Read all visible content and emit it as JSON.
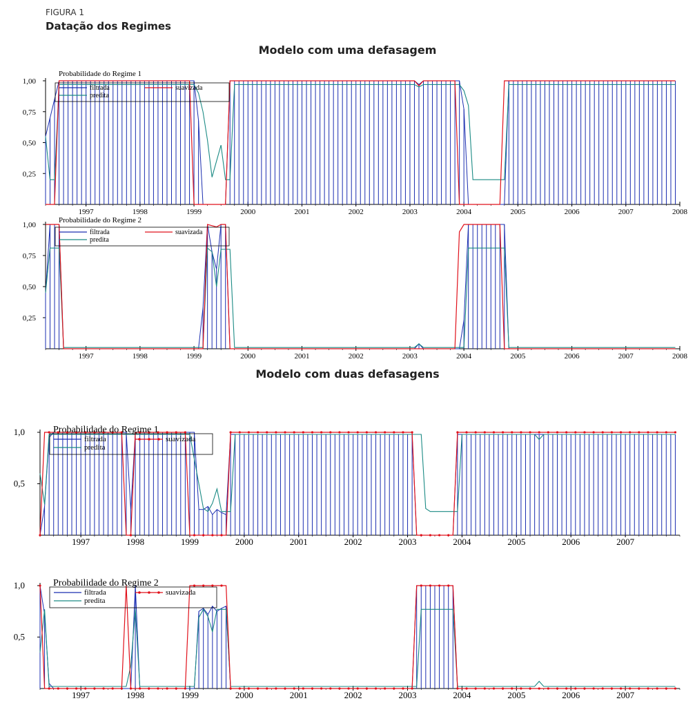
{
  "figure": {
    "label": "FIGURA 1",
    "title": "Datação dos Regimes"
  },
  "sections": [
    {
      "title": "Modelo com uma defasagem"
    },
    {
      "title": "Modelo com duas defasagens"
    }
  ],
  "colors": {
    "filtrada": "#1a2db0",
    "suavizada": "#e0101a",
    "predita": "#1a8a84",
    "axis": "#000000"
  },
  "chart_data": [
    {
      "type": "line",
      "title": "Probabilidade do Regime 1",
      "x_start": 1996.25,
      "x_end": 2007.917,
      "n": 141,
      "xlim": [
        1996.25,
        2008.0
      ],
      "x_tick_labels": [
        "1997",
        "1998",
        "1999",
        "2000",
        "2001",
        "2002",
        "2003",
        "2004",
        "2005",
        "2006",
        "2007",
        "2008"
      ],
      "y_ticks": [
        0.25,
        0.5,
        0.75,
        1.0
      ],
      "y_tick_labels": [
        "0,25",
        "0,50",
        "0,75",
        "1,00"
      ],
      "ylim": [
        0,
        1
      ],
      "legend": {
        "placement": "top-left",
        "entries": [
          "filtrada",
          "suavizada",
          "predita"
        ]
      },
      "series": [
        {
          "name": "filtrada",
          "style": "spike",
          "segments": [
            [
              0,
              0.55
            ],
            [
              3,
              1
            ],
            [
              33,
              1
            ],
            [
              34,
              0.68
            ],
            [
              35,
              0
            ],
            [
              40,
              0
            ],
            [
              41,
              1
            ],
            [
              82,
              1
            ],
            [
              83,
              0.97
            ],
            [
              84,
              1
            ],
            [
              92,
              1
            ],
            [
              93,
              0.77
            ],
            [
              94,
              0
            ],
            [
              102,
              0
            ],
            [
              103,
              1
            ],
            [
              140,
              1
            ]
          ]
        },
        {
          "name": "suavizada",
          "segments": [
            [
              0,
              0
            ],
            [
              2,
              0
            ],
            [
              3,
              1
            ],
            [
              32,
              1
            ],
            [
              33,
              0
            ],
            [
              40,
              0
            ],
            [
              41,
              1
            ],
            [
              82,
              1
            ],
            [
              83,
              0.96
            ],
            [
              84,
              1
            ],
            [
              91,
              1
            ],
            [
              92,
              0
            ],
            [
              101,
              0
            ],
            [
              102,
              1
            ],
            [
              140,
              1
            ]
          ]
        },
        {
          "name": "predita",
          "segments": [
            [
              0,
              0.55
            ],
            [
              1,
              0.2
            ],
            [
              2,
              0.2
            ],
            [
              3,
              0.97
            ],
            [
              33,
              0.97
            ],
            [
              34,
              0.9
            ],
            [
              35,
              0.75
            ],
            [
              36,
              0.52
            ],
            [
              37,
              0.22
            ],
            [
              38,
              0.35
            ],
            [
              39,
              0.48
            ],
            [
              40,
              0.2
            ],
            [
              41,
              0.2
            ],
            [
              42,
              0.97
            ],
            [
              82,
              0.97
            ],
            [
              83,
              0.95
            ],
            [
              84,
              0.97
            ],
            [
              92,
              0.97
            ],
            [
              93,
              0.92
            ],
            [
              94,
              0.8
            ],
            [
              95,
              0.2
            ],
            [
              102,
              0.2
            ],
            [
              103,
              0.97
            ],
            [
              140,
              0.97
            ]
          ]
        }
      ]
    },
    {
      "type": "line",
      "title": "Probabilidade do Regime 2",
      "x_start": 1996.25,
      "x_end": 2007.917,
      "n": 141,
      "xlim": [
        1996.25,
        2008.0
      ],
      "x_tick_labels": [
        "1997",
        "1998",
        "1999",
        "2000",
        "2001",
        "2002",
        "2003",
        "2004",
        "2005",
        "2006",
        "2007",
        "2008"
      ],
      "y_ticks": [
        0.25,
        0.5,
        0.75,
        1.0
      ],
      "y_tick_labels": [
        "0,25",
        "0,50",
        "0,75",
        "1,00"
      ],
      "ylim": [
        0,
        1
      ],
      "legend": {
        "placement": "top-left",
        "entries": [
          "filtrada",
          "suavizada",
          "predita"
        ]
      },
      "series": [
        {
          "name": "filtrada",
          "style": "spike",
          "segments": [
            [
              0,
              0.45
            ],
            [
              1,
              1
            ],
            [
              3,
              1
            ],
            [
              4,
              0
            ],
            [
              34,
              0
            ],
            [
              35,
              0.33
            ],
            [
              36,
              1
            ],
            [
              37,
              0.78
            ],
            [
              38,
              0.64
            ],
            [
              39,
              1
            ],
            [
              40,
              1
            ],
            [
              41,
              0
            ],
            [
              82,
              0
            ],
            [
              83,
              0.04
            ],
            [
              84,
              0
            ],
            [
              92,
              0
            ],
            [
              93,
              0.23
            ],
            [
              94,
              1
            ],
            [
              102,
              1
            ],
            [
              103,
              0
            ],
            [
              140,
              0
            ]
          ]
        },
        {
          "name": "suavizada",
          "segments": [
            [
              0,
              1
            ],
            [
              3,
              1
            ],
            [
              4,
              0
            ],
            [
              34,
              0
            ],
            [
              35,
              0
            ],
            [
              36,
              1
            ],
            [
              37,
              0.99
            ],
            [
              38,
              0.98
            ],
            [
              39,
              1
            ],
            [
              40,
              1
            ],
            [
              41,
              0
            ],
            [
              91,
              0
            ],
            [
              92,
              0.94
            ],
            [
              93,
              1
            ],
            [
              101,
              1
            ],
            [
              102,
              0
            ],
            [
              140,
              0
            ]
          ]
        },
        {
          "name": "predita",
          "segments": [
            [
              0,
              0.45
            ],
            [
              1,
              0.81
            ],
            [
              3,
              0.81
            ],
            [
              4,
              0.01
            ],
            [
              35,
              0.01
            ],
            [
              36,
              0.81
            ],
            [
              37,
              0.78
            ],
            [
              38,
              0.5
            ],
            [
              39,
              0.8
            ],
            [
              41,
              0.8
            ],
            [
              42,
              0.01
            ],
            [
              82,
              0.01
            ],
            [
              83,
              0.04
            ],
            [
              84,
              0.01
            ],
            [
              93,
              0.01
            ],
            [
              94,
              0.81
            ],
            [
              102,
              0.81
            ],
            [
              103,
              0.01
            ],
            [
              140,
              0.01
            ]
          ]
        }
      ]
    },
    {
      "type": "line",
      "title": "Probabilidade do Regime 1",
      "x_start": 1996.25,
      "x_end": 2007.917,
      "n": 141,
      "xlim": [
        1996.25,
        2008.0
      ],
      "x_tick_labels": [
        "1997",
        "1998",
        "1999",
        "2000",
        "2001",
        "2002",
        "2003",
        "2004",
        "2005",
        "2006",
        "2007"
      ],
      "y_ticks": [
        0.5,
        1.0
      ],
      "y_tick_labels": [
        "0,5",
        "1,0"
      ],
      "ylim": [
        0,
        1
      ],
      "legend": {
        "placement": "top-left",
        "entries": [
          "filtrada",
          "suavizada",
          "predita"
        ]
      },
      "series": [
        {
          "name": "filtrada",
          "style": "spike",
          "segments": [
            [
              0,
              0
            ],
            [
              1,
              0.28
            ],
            [
              2,
              0.95
            ],
            [
              3,
              1
            ],
            [
              19,
              1
            ],
            [
              20,
              0.25
            ],
            [
              21,
              1
            ],
            [
              34,
              1
            ],
            [
              35,
              0.25
            ],
            [
              36,
              0.25
            ],
            [
              37,
              0.28
            ],
            [
              38,
              0.2
            ],
            [
              39,
              0.25
            ],
            [
              40,
              0.22
            ],
            [
              41,
              0.2
            ],
            [
              42,
              0.98
            ],
            [
              82,
              0.98
            ],
            [
              83,
              0
            ],
            [
              91,
              0
            ],
            [
              92,
              0.98
            ],
            [
              140,
              0.98
            ]
          ]
        },
        {
          "name": "suavizada",
          "style": "dotted",
          "segments": [
            [
              0,
              0
            ],
            [
              1,
              1
            ],
            [
              18,
              1
            ],
            [
              19,
              0
            ],
            [
              20,
              0
            ],
            [
              21,
              1
            ],
            [
              32,
              1
            ],
            [
              33,
              0
            ],
            [
              41,
              0
            ],
            [
              42,
              1
            ],
            [
              82,
              1
            ],
            [
              83,
              0
            ],
            [
              91,
              0
            ],
            [
              92,
              1
            ],
            [
              140,
              1
            ]
          ]
        },
        {
          "name": "predita",
          "segments": [
            [
              0,
              0.6
            ],
            [
              1,
              0.3
            ],
            [
              2,
              0.98
            ],
            [
              33,
              0.98
            ],
            [
              36,
              0.26
            ],
            [
              37,
              0.23
            ],
            [
              38,
              0.31
            ],
            [
              39,
              0.45
            ],
            [
              40,
              0.23
            ],
            [
              42,
              0.23
            ],
            [
              43,
              0.98
            ],
            [
              84,
              0.98
            ],
            [
              85,
              0.26
            ],
            [
              86,
              0.23
            ],
            [
              92,
              0.23
            ],
            [
              93,
              0.98
            ],
            [
              109,
              0.98
            ],
            [
              110,
              0.93
            ],
            [
              111,
              0.98
            ],
            [
              140,
              0.98
            ]
          ]
        }
      ]
    },
    {
      "type": "line",
      "title": "Probabilidade do Regime 2",
      "x_start": 1996.25,
      "x_end": 2007.917,
      "n": 141,
      "xlim": [
        1996.25,
        2008.0
      ],
      "x_tick_labels": [
        "1997",
        "1998",
        "1999",
        "2000",
        "2001",
        "2002",
        "2003",
        "2004",
        "2005",
        "2006",
        "2007"
      ],
      "y_ticks": [
        0.5,
        1.0
      ],
      "y_tick_labels": [
        "0,5",
        "1,0"
      ],
      "ylim": [
        0,
        1
      ],
      "legend": {
        "placement": "top-left",
        "entries": [
          "filtrada",
          "suavizada",
          "predita"
        ]
      },
      "series": [
        {
          "name": "filtrada",
          "style": "spike",
          "segments": [
            [
              0,
              1
            ],
            [
              1,
              0.72
            ],
            [
              2,
              0.05
            ],
            [
              3,
              0
            ],
            [
              20,
              0
            ],
            [
              21,
              1
            ],
            [
              22,
              0
            ],
            [
              34,
              0
            ],
            [
              35,
              0.75
            ],
            [
              36,
              0.78
            ],
            [
              37,
              0.72
            ],
            [
              38,
              0.8
            ],
            [
              39,
              0.75
            ],
            [
              40,
              0.78
            ],
            [
              41,
              0.8
            ],
            [
              42,
              0
            ],
            [
              82,
              0
            ],
            [
              83,
              1
            ],
            [
              91,
              1
            ],
            [
              92,
              0
            ],
            [
              140,
              0
            ]
          ]
        },
        {
          "name": "suavizada",
          "style": "dotted",
          "segments": [
            [
              0,
              1
            ],
            [
              1,
              0
            ],
            [
              18,
              0
            ],
            [
              19,
              1
            ],
            [
              20,
              0
            ],
            [
              32,
              0
            ],
            [
              33,
              1
            ],
            [
              41,
              1
            ],
            [
              42,
              0
            ],
            [
              82,
              0
            ],
            [
              83,
              1
            ],
            [
              91,
              1
            ],
            [
              92,
              0
            ],
            [
              140,
              0
            ]
          ]
        },
        {
          "name": "predita",
          "segments": [
            [
              0,
              0.35
            ],
            [
              1,
              0.77
            ],
            [
              2,
              0.02
            ],
            [
              19,
              0.02
            ],
            [
              20,
              0.22
            ],
            [
              21,
              0.77
            ],
            [
              22,
              0.02
            ],
            [
              34,
              0.02
            ],
            [
              35,
              0.69
            ],
            [
              36,
              0.77
            ],
            [
              37,
              0.7
            ],
            [
              38,
              0.55
            ],
            [
              39,
              0.77
            ],
            [
              41,
              0.77
            ],
            [
              42,
              0.02
            ],
            [
              83,
              0.02
            ],
            [
              84,
              0.77
            ],
            [
              91,
              0.77
            ],
            [
              92,
              0.02
            ],
            [
              109,
              0.02
            ],
            [
              110,
              0.07
            ],
            [
              111,
              0.02
            ],
            [
              140,
              0.02
            ]
          ]
        }
      ]
    }
  ]
}
